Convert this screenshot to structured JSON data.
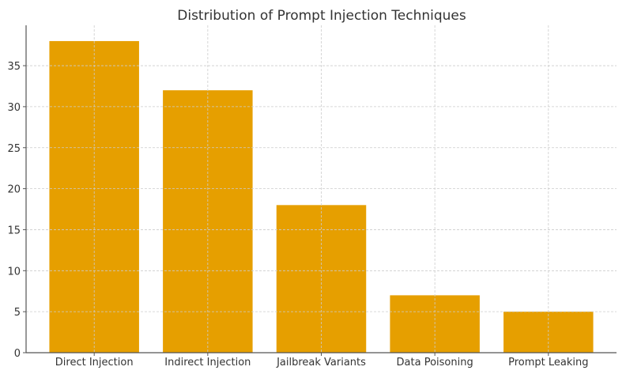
{
  "chart_data": {
    "type": "bar",
    "title": "Distribution of Prompt Injection Techniques",
    "xlabel": "",
    "ylabel": "",
    "categories": [
      "Direct Injection",
      "Indirect Injection",
      "Jailbreak Variants",
      "Data Poisoning",
      "Prompt Leaking"
    ],
    "values": [
      38,
      32,
      18,
      7,
      5
    ],
    "ylim": [
      0,
      40
    ],
    "yticks": [
      0,
      5,
      10,
      15,
      20,
      25,
      30,
      35
    ],
    "grid": true,
    "bar_color": "#E69F00"
  }
}
